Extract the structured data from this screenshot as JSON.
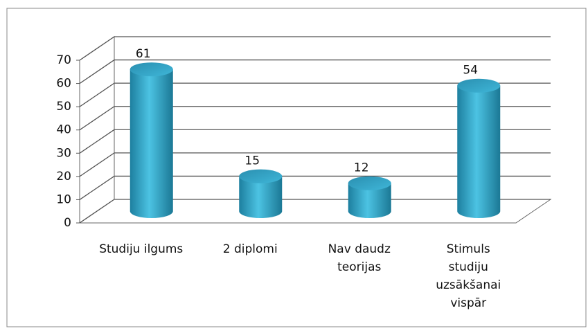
{
  "chart_data": {
    "type": "bar3d",
    "categories": [
      [
        "Studiju ilgums"
      ],
      [
        "2 diplomi"
      ],
      [
        "Nav daudz",
        "teorijas"
      ],
      [
        "Stimuls",
        "studiju",
        "uzsākšanai",
        "vispār"
      ]
    ],
    "values": [
      61,
      15,
      12,
      54
    ],
    "color": "#31a3c6",
    "ylim": [
      0,
      70
    ],
    "yticks": [
      0,
      10,
      20,
      30,
      40,
      50,
      60,
      70
    ],
    "grid": true
  }
}
